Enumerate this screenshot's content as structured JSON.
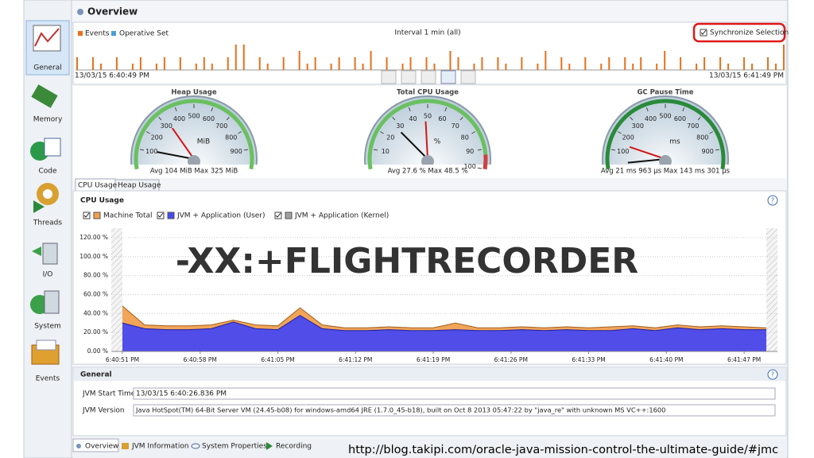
{
  "header": {
    "title": "Overview"
  },
  "sidebar": {
    "items": [
      "General",
      "Memory",
      "Code",
      "Threads",
      "I/O",
      "System",
      "Events"
    ]
  },
  "events_panel": {
    "legend": [
      "Events",
      "Operative Set"
    ],
    "interval": "Interval 1 min (all)",
    "synchronize": "Synchronize Selection",
    "start_time": "13/03/15 6:40:49 PM",
    "end_time": "13/03/15 6:41:49 PM",
    "event_counts": [
      2,
      0,
      2,
      1,
      0,
      2,
      0,
      1,
      2,
      0,
      1,
      2,
      0,
      2,
      0,
      1,
      2,
      1,
      0,
      2,
      4,
      4,
      0,
      2,
      1,
      0,
      2,
      0,
      3,
      1,
      2,
      0,
      1,
      2,
      0,
      2,
      1,
      3,
      0,
      2,
      0,
      1,
      2,
      0,
      2,
      1,
      0,
      3,
      2,
      0,
      1,
      2,
      0,
      2,
      1,
      0,
      2,
      0,
      1,
      3,
      0,
      2,
      1,
      0,
      2,
      0,
      1,
      2,
      0,
      2,
      1,
      2,
      0,
      1,
      3,
      0,
      2,
      0,
      1,
      2,
      0,
      2,
      1,
      0,
      2,
      1,
      0,
      2,
      1,
      4
    ]
  },
  "gauges": [
    {
      "title": "Heap Usage",
      "unit": "MiB",
      "min": 0,
      "max": 1000,
      "ticks": [
        100,
        200,
        300,
        400,
        500,
        600,
        700,
        800,
        900
      ],
      "avg": 104,
      "peak": 325,
      "stats": "Avg 104 MiB   Max 325 MiB"
    },
    {
      "title": "Total CPU Usage",
      "unit": "%",
      "min": 0,
      "max": 100,
      "ticks": [
        10,
        20,
        30,
        40,
        50,
        60,
        70,
        80,
        90,
        100
      ],
      "avg": 27.6,
      "peak": 48.5,
      "stats": "Avg 27.6 %   Max 48.5 %"
    },
    {
      "title": "GC Pause Time",
      "unit": "ms",
      "min": 0,
      "max": 1000,
      "ticks": [
        100,
        200,
        300,
        400,
        500,
        600,
        700,
        800,
        900
      ],
      "avg": 21.963,
      "peak": 143.301,
      "stats": "Avg 21 ms 963 μs   Max 143 ms 301 μs"
    }
  ],
  "tabs": [
    "CPU Usage",
    "Heap Usage"
  ],
  "chart_data": {
    "type": "area",
    "title": "CPU Usage",
    "overlay": "-XX:+FLIGHTRECORDER",
    "grid": true,
    "x": [
      "6:40:51 PM",
      "6:40:53 PM",
      "6:40:55 PM",
      "6:40:57 PM",
      "6:40:59 PM",
      "6:41:01 PM",
      "6:41:03 PM",
      "6:41:05 PM",
      "6:41:07 PM",
      "6:41:09 PM",
      "6:41:11 PM",
      "6:41:13 PM",
      "6:41:15 PM",
      "6:41:17 PM",
      "6:41:19 PM",
      "6:41:21 PM",
      "6:41:23 PM",
      "6:41:25 PM",
      "6:41:27 PM",
      "6:41:29 PM",
      "6:41:31 PM",
      "6:41:33 PM",
      "6:41:35 PM",
      "6:41:37 PM",
      "6:41:39 PM",
      "6:41:41 PM",
      "6:41:43 PM",
      "6:41:45 PM",
      "6:41:47 PM",
      "6:41:49 PM"
    ],
    "xlim": [
      "6:40:50 PM",
      "6:41:50 PM"
    ],
    "xticks": [
      "6:40:51 PM",
      "6:40:58 PM",
      "6:41:05 PM",
      "6:41:12 PM",
      "6:41:19 PM",
      "6:41:26 PM",
      "6:41:33 PM",
      "6:41:40 PM",
      "6:41:47 PM"
    ],
    "ylim": [
      0,
      130
    ],
    "yticks": [
      {
        "value": 0,
        "label": "0.00 %"
      },
      {
        "value": 20,
        "label": "20.00 %"
      },
      {
        "value": 40,
        "label": "40.00 %"
      },
      {
        "value": 60,
        "label": "60.00 %"
      },
      {
        "value": 80,
        "label": "80.00 %"
      },
      {
        "value": 100,
        "label": "100.00 %"
      },
      {
        "value": 120,
        "label": "120.00 %"
      }
    ],
    "series": [
      {
        "name": "Machine Total",
        "color": "#f0a050",
        "values": [
          48,
          28,
          27,
          27,
          28,
          33,
          28,
          27,
          46,
          28,
          25,
          25,
          26,
          25,
          25,
          30,
          25,
          25,
          26,
          25,
          26,
          25,
          26,
          27,
          25,
          28,
          26,
          27,
          26,
          25
        ]
      },
      {
        "name": "JVM + Application (User)",
        "color": "#4848f0",
        "values": [
          30,
          24,
          23,
          23,
          24,
          31,
          24,
          23,
          38,
          24,
          22,
          22,
          23,
          22,
          22,
          23,
          22,
          22,
          23,
          22,
          23,
          22,
          22,
          24,
          22,
          25,
          23,
          24,
          23,
          23
        ]
      },
      {
        "name": "JVM + Application (Kernel)",
        "color": "#a0a0a0",
        "values": [
          null,
          null,
          null,
          null,
          null,
          null,
          null,
          null,
          null,
          null,
          null,
          null,
          null,
          null,
          null,
          null,
          null,
          null,
          null,
          null,
          null,
          null,
          null,
          null,
          null,
          null,
          null,
          null,
          null,
          null
        ]
      }
    ]
  },
  "general": {
    "title": "General",
    "rows": [
      [
        "JVM Start Time",
        "13/03/15 6:40:26.836 PM"
      ],
      [
        "JVM Version",
        "Java HotSpot(TM) 64-Bit Server VM (24.45-b08) for windows-amd64 JRE (1.7.0_45-b18), built on Oct  8 2013 05:47:22 by \"java_re\" with unknown MS VC++:1600"
      ]
    ]
  },
  "bottom_tabs": [
    "Overview",
    "JVM Information",
    "System Properties",
    "Recording"
  ],
  "footer": {
    "url": "http://blog.takipi.com/oracle-java-mission-control-the-ultimate-guide/#jmc"
  }
}
